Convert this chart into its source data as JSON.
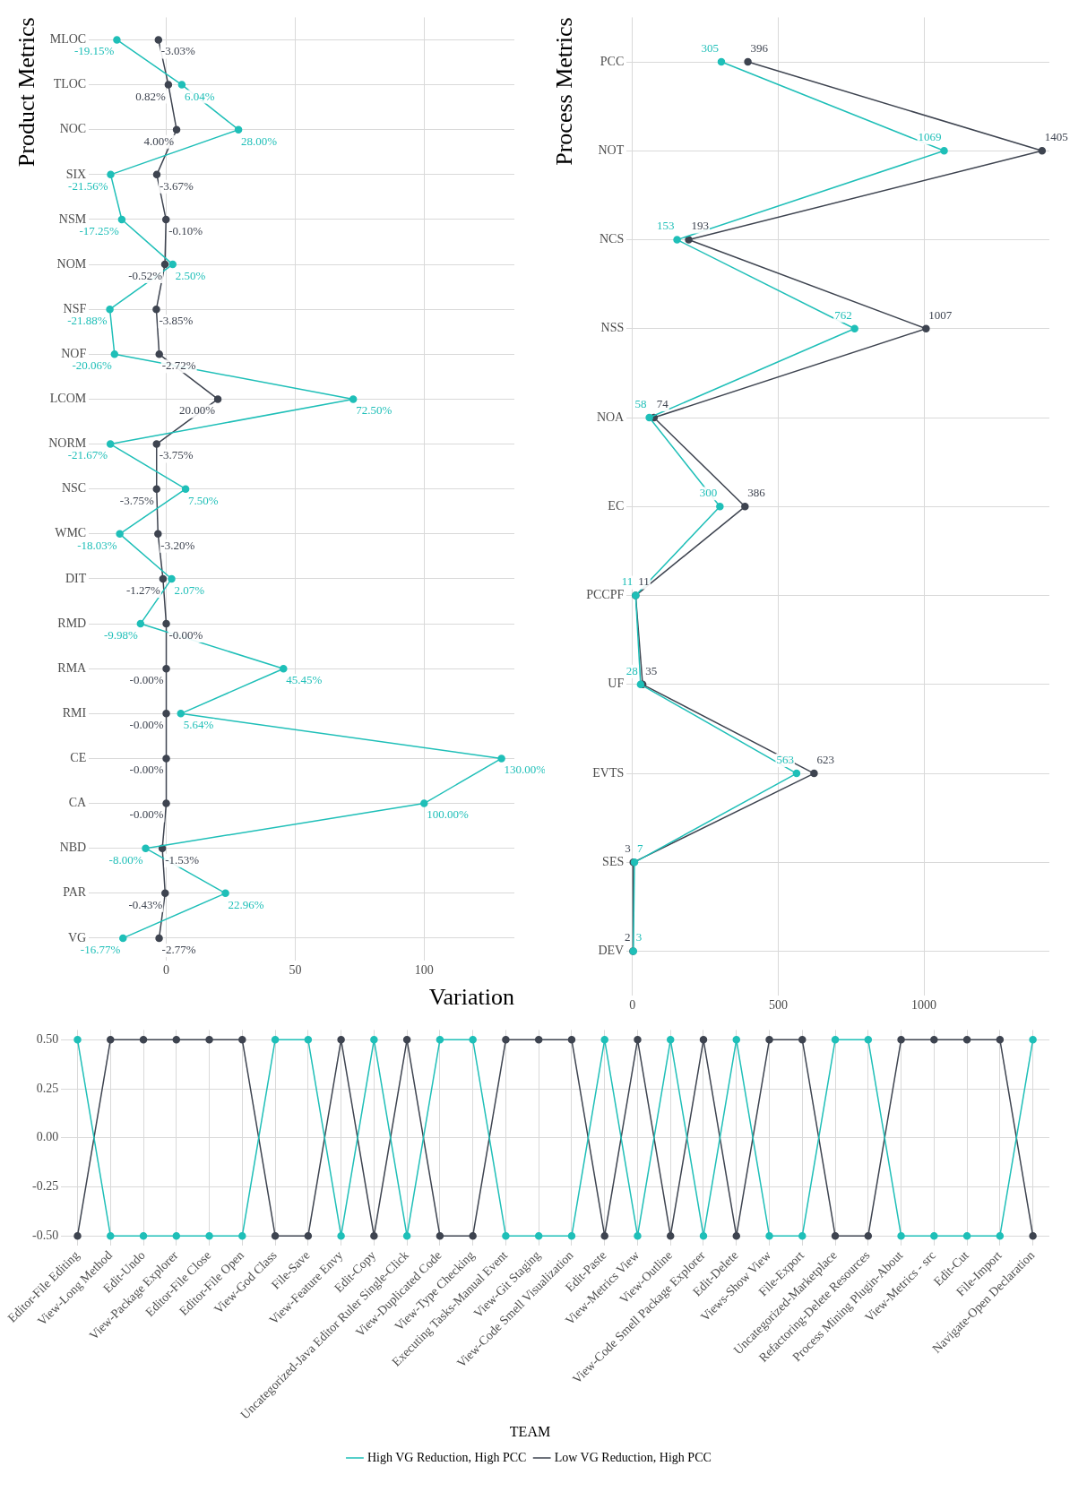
{
  "chart_data": [
    {
      "type": "line",
      "orientation": "horizontal",
      "ylabel": "Product Metrics",
      "xlabel": "Variation",
      "categories": [
        "MLOC",
        "TLOC",
        "NOC",
        "SIX",
        "NSM",
        "NOM",
        "NSF",
        "NOF",
        "LCOM",
        "NORM",
        "NSC",
        "WMC",
        "DIT",
        "RMD",
        "RMA",
        "RMI",
        "CE",
        "CA",
        "NBD",
        "PAR",
        "VG"
      ],
      "xlim": [
        -30,
        135
      ],
      "xticks": [
        0,
        50,
        100
      ],
      "grid": true,
      "marker": "circle",
      "series": [
        {
          "color": "#1fbfb8",
          "values": [
            -19.15,
            6.04,
            28.0,
            -21.56,
            -17.25,
            2.5,
            -21.88,
            -20.06,
            72.5,
            -21.67,
            7.5,
            -18.03,
            2.07,
            -9.98,
            45.45,
            5.64,
            130.0,
            100.0,
            -8.0,
            22.96,
            -16.77
          ],
          "value_labels": [
            "-19.15%",
            "6.04%",
            "28.00%",
            "-21.56%",
            "-17.25%",
            "2.50%",
            "-21.88%",
            "-20.06%",
            "72.50%",
            "-21.67%",
            "7.50%",
            "-18.03%",
            "2.07%",
            "-9.98%",
            "45.45%",
            "5.64%",
            "130.00%",
            "100.00%",
            "-8.00%",
            "22.96%",
            "-16.77%"
          ]
        },
        {
          "color": "#3e4450",
          "values": [
            -3.03,
            0.82,
            4.0,
            -3.67,
            -0.1,
            -0.52,
            -3.85,
            -2.72,
            20.0,
            -3.75,
            -3.75,
            -3.2,
            -1.27,
            0,
            0,
            0,
            0,
            0,
            -1.53,
            -0.43,
            -2.77
          ],
          "value_labels": [
            "-3.03%",
            "0.82%",
            "4.00%",
            "-3.67%",
            "-0.10%",
            "-0.52%",
            "-3.85%",
            "-2.72%",
            "20.00%",
            "-3.75%",
            "-3.75%",
            "-3.20%",
            "-1.27%",
            "-0.00%",
            "-0.00%",
            "-0.00%",
            "-0.00%",
            "-0.00%",
            "-1.53%",
            "-0.43%",
            "-2.77%"
          ]
        }
      ]
    },
    {
      "type": "line",
      "orientation": "horizontal",
      "ylabel": "Process Metrics",
      "categories": [
        "PCC",
        "NOT",
        "NCS",
        "NSS",
        "NOA",
        "EC",
        "PCCPF",
        "UF",
        "EVTS",
        "SES",
        "DEV"
      ],
      "xlim": [
        -20,
        1430
      ],
      "xticks": [
        0,
        500,
        1000
      ],
      "grid": true,
      "marker": "circle",
      "data_labels": true,
      "series": [
        {
          "color": "#1fbfb8",
          "values": [
            305,
            1069,
            153,
            762,
            58,
            300,
            11,
            28,
            563,
            7,
            3
          ]
        },
        {
          "color": "#3e4450",
          "values": [
            396,
            1405,
            193,
            1007,
            74,
            386,
            11,
            35,
            623,
            3,
            2
          ]
        }
      ]
    },
    {
      "type": "line",
      "categories": [
        "Editor-File Editing",
        "View-Long Method",
        "Edit-Undo",
        "View-Package Explorer",
        "Editor-File Close",
        "Editor-File Open",
        "View-God Class",
        "File-Save",
        "View-Feature Envy",
        "Edit-Copy",
        "Uncategorized-Java Editor Ruler Single-Click",
        "View-Duplicated Code",
        "View-Type Checking",
        "Executing Tasks-Manual Event",
        "View-Git Staging",
        "View-Code Smell Visualization",
        "Edit-Paste",
        "View-Metrics View",
        "View-Outline",
        "View-Code Smell Package Explorer",
        "Edit-Delete",
        "Views-Show View",
        "File-Export",
        "Uncategorized-Marketplace",
        "Refactoring-Delete Resources",
        "Process Mining Plugin-About",
        "View-Metrics - src",
        "Edit-Cut",
        "File-Import",
        "Navigate-Open Declaration"
      ],
      "ylim": [
        -0.55,
        0.55
      ],
      "yticks": [
        {
          "value": -0.5,
          "label": "-0.50"
        },
        {
          "value": -0.25,
          "label": "-0.25"
        },
        {
          "value": 0,
          "label": "0.00"
        },
        {
          "value": 0.25,
          "label": "0.25"
        },
        {
          "value": 0.5,
          "label": "0.50"
        }
      ],
      "grid": true,
      "marker": "circle",
      "legend": "bottom",
      "legend_title": "TEAM",
      "series": [
        {
          "name": "High VG Reduction, High PCC",
          "color": "#1fbfb8",
          "values": [
            0.5,
            -0.5,
            -0.5,
            -0.5,
            -0.5,
            -0.5,
            0.5,
            0.5,
            -0.5,
            0.5,
            -0.5,
            0.5,
            0.5,
            -0.5,
            -0.5,
            -0.5,
            0.5,
            -0.5,
            0.5,
            -0.5,
            0.5,
            -0.5,
            -0.5,
            0.5,
            0.5,
            -0.5,
            -0.5,
            -0.5,
            -0.5,
            0.5
          ]
        },
        {
          "name": "Low VG Reduction, High PCC",
          "color": "#3e4450",
          "values": [
            -0.5,
            0.5,
            0.5,
            0.5,
            0.5,
            0.5,
            -0.5,
            -0.5,
            0.5,
            -0.5,
            0.5,
            -0.5,
            -0.5,
            0.5,
            0.5,
            0.5,
            -0.5,
            0.5,
            -0.5,
            0.5,
            -0.5,
            0.5,
            0.5,
            -0.5,
            -0.5,
            0.5,
            0.5,
            0.5,
            0.5,
            -0.5
          ]
        }
      ]
    }
  ]
}
